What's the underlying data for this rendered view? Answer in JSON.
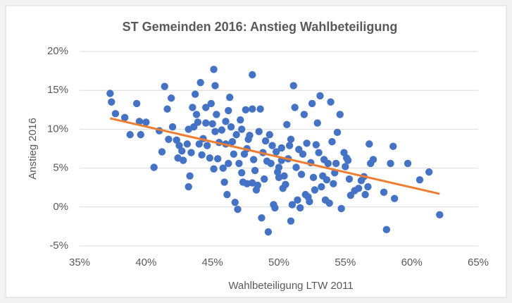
{
  "chart_data": {
    "type": "scatter",
    "title": "ST Gemeinden 2016: Anstieg Wahlbeteiligung",
    "x_label": "Wahlbeteiligung LTW 2011",
    "y_label": "Anstieg 2016",
    "color": "#4472c4",
    "x": [
      37.3,
      37.4,
      37.7,
      38.4,
      38.8,
      39.3,
      39.5,
      39.6,
      40.0,
      40.6,
      41.0,
      41.2,
      41.4,
      41.6,
      41.7,
      41.9,
      42.0,
      42.3,
      42.4,
      42.5,
      42.7,
      42.8,
      43.1,
      43.2,
      43.2,
      43.3,
      43.4,
      43.5,
      43.6,
      43.7,
      43.8,
      43.9,
      44.0,
      44.1,
      44.2,
      44.3,
      44.5,
      44.5,
      44.6,
      44.8,
      44.9,
      45.0,
      45.1,
      45.1,
      45.2,
      45.2,
      45.3,
      45.4,
      45.5,
      45.7,
      45.8,
      45.9,
      46.0,
      46.0,
      46.1,
      46.2,
      46.2,
      46.3,
      46.4,
      46.5,
      46.6,
      46.7,
      46.8,
      46.9,
      47.0,
      47.1,
      47.2,
      47.2,
      47.3,
      47.4,
      47.5,
      47.6,
      47.6,
      47.7,
      47.8,
      48.0,
      48.0,
      48.0,
      48.1,
      48.2,
      48.3,
      48.4,
      48.5,
      48.6,
      48.7,
      48.8,
      48.9,
      49.0,
      49.1,
      49.2,
      49.3,
      49.4,
      49.5,
      49.6,
      49.7,
      49.8,
      49.9,
      50.0,
      50.0,
      50.2,
      50.2,
      50.3,
      50.4,
      50.5,
      50.6,
      50.7,
      50.8,
      50.9,
      50.9,
      51.0,
      51.1,
      51.2,
      51.3,
      51.4,
      51.5,
      51.6,
      51.7,
      51.8,
      51.9,
      52.0,
      52.1,
      52.2,
      52.3,
      52.4,
      52.5,
      52.6,
      52.7,
      52.8,
      52.9,
      53.0,
      53.1,
      53.2,
      53.3,
      53.4,
      53.5,
      53.6,
      53.7,
      53.8,
      53.9,
      54.0,
      54.1,
      54.2,
      54.3,
      54.4,
      54.6,
      54.7,
      54.9,
      55.0,
      55.1,
      55.2,
      55.3,
      55.4,
      55.7,
      56.0,
      56.2,
      56.4,
      56.5,
      56.7,
      56.8,
      56.9,
      57.1,
      57.9,
      58.1,
      58.4,
      58.6,
      58.7,
      59.7,
      60.6,
      61.3,
      62.1
    ],
    "values": [
      14.6,
      13.5,
      12.0,
      11.5,
      9.3,
      13.3,
      11.0,
      9.3,
      10.9,
      5.1,
      9.8,
      7.1,
      15.5,
      12.6,
      8.7,
      14.0,
      10.3,
      8.6,
      6.3,
      7.9,
      7.2,
      6.0,
      8.1,
      10.0,
      2.6,
      4.0,
      7.0,
      12.8,
      10.3,
      14.5,
      11.9,
      10.9,
      8.1,
      16.0,
      6.7,
      8.8,
      10.8,
      12.8,
      7.9,
      6.3,
      13.3,
      10.7,
      4.9,
      17.7,
      9.7,
      15.6,
      11.9,
      6.2,
      8.3,
      9.9,
      5.0,
      3.2,
      8.1,
      11.0,
      1.6,
      12.4,
      5.6,
      14.1,
      10.3,
      8.4,
      6.8,
      0.6,
      9.3,
      -0.3,
      5.6,
      11.2,
      10.0,
      4.4,
      3.2,
      6.8,
      12.5,
      7.5,
      3.0,
      8.7,
      9.2,
      3.1,
      17.0,
      12.6,
      6.1,
      4.7,
      2.2,
      2.8,
      9.7,
      12.6,
      -1.4,
      7.0,
      3.6,
      8.5,
      5.9,
      -3.2,
      9.3,
      5.6,
      7.9,
      0.3,
      -0.1,
      7.1,
      4.5,
      3.8,
      5.1,
      7.6,
      6.0,
      2.4,
      4.0,
      2.9,
      10.6,
      6.2,
      7.9,
      8.7,
      -1.8,
      0.3,
      15.6,
      12.8,
      5.1,
      0.9,
      7.4,
      -0.1,
      4.2,
      6.8,
      11.9,
      1.6,
      8.2,
      1.3,
      0.7,
      5.7,
      13.3,
      3.8,
      2.2,
      8.0,
      10.8,
      7.0,
      14.3,
      2.6,
      4.0,
      6.1,
      0.9,
      3.5,
      5.6,
      0.5,
      13.5,
      8.4,
      3.0,
      4.4,
      5.6,
      9.6,
      11.9,
      -0.2,
      7.0,
      5.2,
      6.3,
      6.0,
      3.6,
      1.5,
      2.1,
      2.4,
      3.4,
      3.9,
      1.6,
      2.6,
      8.1,
      5.6,
      6.1,
      1.9,
      -2.9,
      5.6,
      7.8,
      1.1,
      5.6,
      3.5,
      4.5,
      -1.0
    ],
    "trendline": {
      "x": [
        37.3,
        62.1
      ],
      "values": [
        11.4,
        1.7
      ],
      "color": "#ed7d31"
    },
    "xlim": [
      35,
      65
    ],
    "xticks": [
      {
        "value": 35,
        "label": "35%"
      },
      {
        "value": 40,
        "label": "40%"
      },
      {
        "value": 45,
        "label": "45%"
      },
      {
        "value": 50,
        "label": "50%"
      },
      {
        "value": 55,
        "label": "55%"
      },
      {
        "value": 60,
        "label": "60%"
      },
      {
        "value": 65,
        "label": "65%"
      }
    ],
    "ylim": [
      -5,
      20
    ],
    "yticks": [
      {
        "value": -5,
        "label": "-5%"
      },
      {
        "value": 0,
        "label": "0%"
      },
      {
        "value": 5,
        "label": "5%"
      },
      {
        "value": 10,
        "label": "10%"
      },
      {
        "value": 15,
        "label": "15%"
      },
      {
        "value": 20,
        "label": "20%"
      }
    ],
    "grid": true
  }
}
